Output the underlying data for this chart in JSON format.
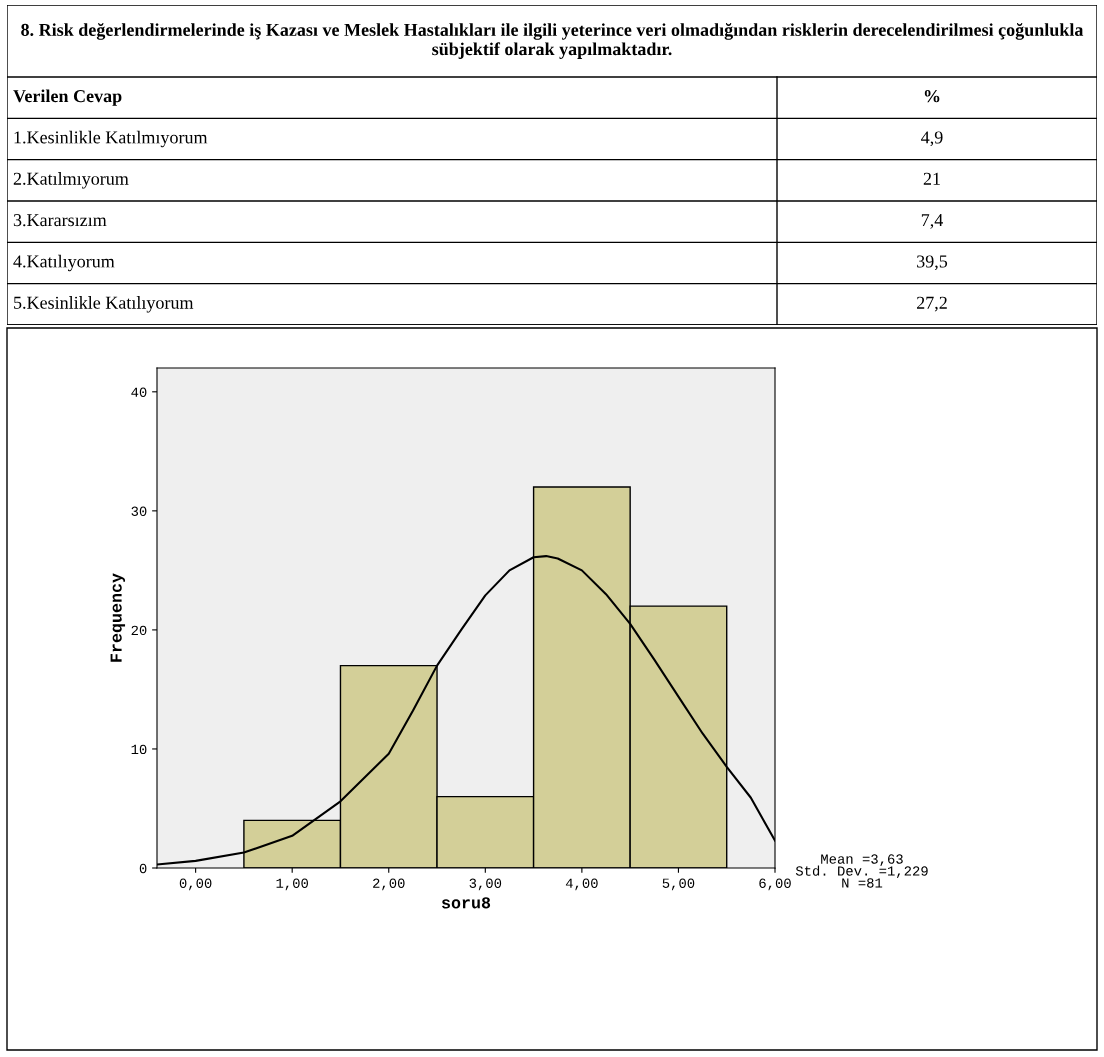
{
  "chart_data": [
    {
      "type": "other",
      "title": "8. Risk değerlendirmelerinde iş Kazası ve Meslek Hastalıkları ile ilgili yeterince veri olmadığından risklerin derecelendirilmesi çoğunlukla sübjektif olarak yapılmaktadır.",
      "xlabel": "Verilen Cevap",
      "ylabel": "%",
      "categories": [
        "1.Kesinlikle Katılmıyorum",
        "2.Katılmıyorum",
        "3.Kararsızım",
        "4.Katılıyorum",
        "5.Kesinlikle Katılıyorum"
      ],
      "values": [
        4.9,
        21,
        7.4,
        39.5,
        27.2
      ],
      "value_labels": [
        "4,9",
        "21",
        "7,4",
        "39,5",
        "27,2"
      ]
    },
    {
      "type": "histogram",
      "xlabel": "soru8",
      "ylabel": "Frequency",
      "bins": [
        0.5,
        1.5,
        2.5,
        3.5,
        4.5,
        5.5
      ],
      "values": [
        4,
        17,
        6,
        32,
        22
      ],
      "color": "#d3cf98",
      "series": [
        {
          "type": "line",
          "color": "#000000",
          "x": [
            -0.4,
            0.0,
            0.5,
            1.0,
            1.5,
            2.0,
            2.25,
            2.5,
            2.75,
            3.0,
            3.25,
            3.5,
            3.63,
            3.75,
            4.0,
            4.25,
            4.5,
            4.75,
            5.0,
            5.25,
            5.5,
            5.75,
            6.0
          ],
          "values": [
            0.3,
            0.6,
            1.3,
            2.7,
            5.6,
            9.6,
            13.2,
            17,
            20.0,
            22.9,
            25.0,
            26.1,
            26.2,
            26.0,
            25.0,
            23.0,
            20.5,
            17.5,
            14.4,
            11.3,
            8.5,
            5.9,
            2.3
          ]
        }
      ],
      "xlim": [
        -0.4,
        6.0
      ],
      "ylim": [
        0,
        42
      ],
      "xticks": [
        {
          "value": 0,
          "label": "0,00"
        },
        {
          "value": 1,
          "label": "1,00"
        },
        {
          "value": 2,
          "label": "2,00"
        },
        {
          "value": 3,
          "label": "3,00"
        },
        {
          "value": 4,
          "label": "4,00"
        },
        {
          "value": 5,
          "label": "5,00"
        },
        {
          "value": 6,
          "label": "6,00"
        }
      ],
      "yticks": [
        0,
        10,
        20,
        30,
        40
      ],
      "grid": false,
      "annotations": [
        "Mean =3,63\nStd. Dev. =1,229\nN =81"
      ]
    }
  ]
}
